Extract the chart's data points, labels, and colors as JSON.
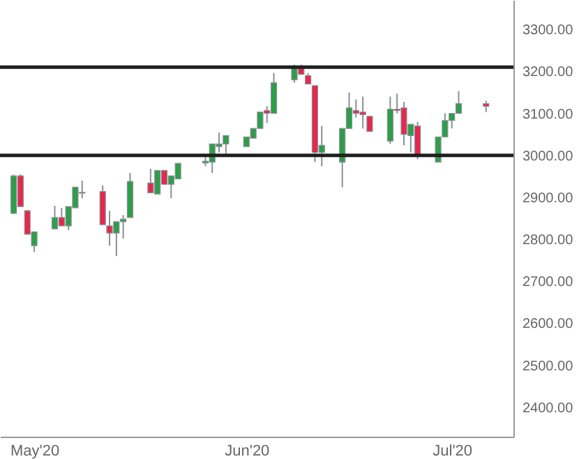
{
  "chart_data": {
    "type": "candlestick",
    "x": [
      "2020-04-28",
      "2020-04-29",
      "2020-04-30",
      "2020-05-01",
      "2020-05-04",
      "2020-05-05",
      "2020-05-06",
      "2020-05-07",
      "2020-05-08",
      "2020-05-11",
      "2020-05-12",
      "2020-05-13",
      "2020-05-14",
      "2020-05-15",
      "2020-05-18",
      "2020-05-19",
      "2020-05-20",
      "2020-05-21",
      "2020-05-22",
      "2020-05-26",
      "2020-05-27",
      "2020-05-28",
      "2020-05-29",
      "2020-06-01",
      "2020-06-02",
      "2020-06-03",
      "2020-06-04",
      "2020-06-05",
      "2020-06-08",
      "2020-06-09",
      "2020-06-10",
      "2020-06-11",
      "2020-06-12",
      "2020-06-15",
      "2020-06-16",
      "2020-06-17",
      "2020-06-18",
      "2020-06-19",
      "2020-06-22",
      "2020-06-23",
      "2020-06-24",
      "2020-06-25",
      "2020-06-26",
      "2020-06-29",
      "2020-06-30",
      "2020-07-01",
      "2020-07-02",
      "2020-07-06"
    ],
    "ohlc": [
      [
        2862,
        2954,
        2860,
        2951
      ],
      [
        2951,
        2955,
        2878,
        2878
      ],
      [
        2868,
        2870,
        2812,
        2812
      ],
      [
        2785,
        2818,
        2770,
        2818
      ],
      [
        2825,
        2880,
        2825,
        2852
      ],
      [
        2852,
        2875,
        2832,
        2832
      ],
      [
        2832,
        2878,
        2822,
        2878
      ],
      [
        2875,
        2925,
        2875,
        2924
      ],
      [
        2910,
        2940,
        2898,
        2912
      ],
      [
        2914,
        2928,
        2835,
        2835
      ],
      [
        2832,
        2868,
        2785,
        2815
      ],
      [
        2815,
        2842,
        2760,
        2842
      ],
      [
        2842,
        2858,
        2802,
        2848
      ],
      [
        2852,
        2958,
        2852,
        2938
      ],
      [
        2934,
        2968,
        2911,
        2911
      ],
      [
        2908,
        2964,
        2908,
        2964
      ],
      [
        2964,
        2964,
        2931,
        2931
      ],
      [
        2931,
        2951,
        2898,
        2951
      ],
      [
        2944,
        2981,
        2944,
        2981
      ],
      [
        2982,
        2997,
        2974,
        2986
      ],
      [
        2984,
        3027,
        2958,
        3027
      ],
      [
        3021,
        3054,
        3007,
        3027
      ],
      [
        3027,
        3047,
        3001,
        3047
      ],
      [
        3021,
        3044,
        3021,
        3044
      ],
      [
        3041,
        3064,
        3041,
        3064
      ],
      [
        3064,
        3103,
        3064,
        3103
      ],
      [
        3107,
        3117,
        3077,
        3100
      ],
      [
        3100,
        3196,
        3100,
        3173
      ],
      [
        3180,
        3216,
        3173,
        3210
      ],
      [
        3210,
        3216,
        3193,
        3193
      ],
      [
        3190,
        3196,
        3170,
        3170
      ],
      [
        3166,
        3166,
        2984,
        3007
      ],
      [
        3007,
        3070,
        2974,
        3024
      ],
      [
        2984,
        3064,
        2924,
        3064
      ],
      [
        3064,
        3150,
        3064,
        3113
      ],
      [
        3107,
        3133,
        3090,
        3100
      ],
      [
        3103,
        3140,
        3064,
        3097
      ],
      [
        3093,
        3093,
        3057,
        3057
      ],
      [
        3034,
        3140,
        3027,
        3110
      ],
      [
        3110,
        3147,
        3100,
        3107
      ],
      [
        3113,
        3127,
        3024,
        3050
      ],
      [
        3047,
        3074,
        3007,
        3074
      ],
      [
        3070,
        3080,
        2991,
        2997
      ],
      [
        2984,
        3044,
        2984,
        3044
      ],
      [
        3044,
        3100,
        3044,
        3083
      ],
      [
        3083,
        3100,
        3064,
        3100
      ],
      [
        3100,
        3153,
        3100,
        3123
      ],
      [
        3123,
        3130,
        3103,
        3117
      ]
    ],
    "colors": [
      "#2e9e48",
      "#e5284b",
      "#e5284b",
      "#2e9e48",
      "#2e9e48",
      "#e5284b",
      "#2e9e48",
      "#2e9e48",
      "#2e9e48",
      "#e5284b",
      "#e5284b",
      "#2e9e48",
      "#2e9e48",
      "#2e9e48",
      "#e5284b",
      "#2e9e48",
      "#e5284b",
      "#2e9e48",
      "#2e9e48",
      "#2e9e48",
      "#2e9e48",
      "#2e9e48",
      "#2e9e48",
      "#2e9e48",
      "#2e9e48",
      "#2e9e48",
      "#e5284b",
      "#2e9e48",
      "#2e9e48",
      "#e5284b",
      "#e5284b",
      "#e5284b",
      "#2e9e48",
      "#2e9e48",
      "#2e9e48",
      "#e5284b",
      "#e5284b",
      "#e5284b",
      "#2e9e48",
      "#e5284b",
      "#e5284b",
      "#2e9e48",
      "#e5284b",
      "#2e9e48",
      "#2e9e48",
      "#2e9e48",
      "#2e9e48",
      "#e5284b"
    ],
    "xlim": [
      "2020-04-26",
      "2020-07-10"
    ],
    "xticks": [
      {
        "value": "2020-05-01",
        "label": "May'20"
      },
      {
        "value": "2020-06-01",
        "label": "Jun'20"
      },
      {
        "value": "2020-07-01",
        "label": "Jul'20"
      }
    ],
    "ylim": [
      2330,
      3370
    ],
    "yticks": [
      {
        "value": 2400,
        "label": "2400.00"
      },
      {
        "value": 2500,
        "label": "2500.00"
      },
      {
        "value": 2600,
        "label": "2600.00"
      },
      {
        "value": 2700,
        "label": "2700.00"
      },
      {
        "value": 2800,
        "label": "2800.00"
      },
      {
        "value": 2900,
        "label": "2900.00"
      },
      {
        "value": 3000,
        "label": "3000.00"
      },
      {
        "value": 3100,
        "label": "3100.00"
      },
      {
        "value": 3200,
        "label": "3200.00"
      },
      {
        "value": 3300,
        "label": "3300.00"
      }
    ],
    "ref_lines": [
      {
        "axis": "y",
        "value": 3210,
        "color": "#1f1f1f"
      },
      {
        "axis": "y",
        "value": 3000,
        "color": "#1f1f1f"
      }
    ],
    "grid": false
  }
}
